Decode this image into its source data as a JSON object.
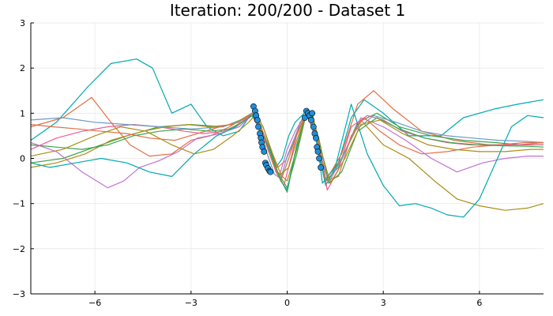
{
  "chart_data": {
    "type": "line",
    "title": "Iteration: 200/200 - Dataset 1",
    "xlim": [
      -8,
      8
    ],
    "ylim": [
      -3,
      3
    ],
    "x_ticks": [
      -6,
      -3,
      0,
      3,
      6
    ],
    "y_ticks": [
      -3,
      -2,
      -1,
      0,
      1,
      2,
      3
    ],
    "x_tick_labels": [
      "−6",
      "−3",
      "0",
      "3",
      "6"
    ],
    "y_tick_labels": [
      "−3",
      "−2",
      "−1",
      "0",
      "1",
      "2",
      "3"
    ],
    "grid": true,
    "legend": "none",
    "series": [
      {
        "color": "#00a9ad",
        "x": [
          -8,
          -7.2,
          -6.2,
          -5.5,
          -4.7,
          -4.2,
          -3.6,
          -3.0,
          -2.5,
          -2.0,
          -1.5,
          -1.1,
          -0.9,
          -0.6,
          -0.35,
          -0.15,
          0.05,
          0.25,
          0.6,
          0.9,
          1.2,
          1.6,
          2.0,
          2.4,
          3.0,
          3.8,
          4.8,
          5.5,
          6.5,
          7.2,
          8
        ],
        "y": [
          0.4,
          0.8,
          1.6,
          2.1,
          2.2,
          2.0,
          1.0,
          1.2,
          0.7,
          0.5,
          0.6,
          1.0,
          0.8,
          0.3,
          -0.2,
          0.0,
          0.5,
          0.8,
          1.05,
          0.4,
          -0.6,
          -0.1,
          0.9,
          1.3,
          1.0,
          0.5,
          0.5,
          0.9,
          1.1,
          1.2,
          1.3
        ]
      },
      {
        "color": "#e26f46",
        "x": [
          -8,
          -7.0,
          -6.1,
          -5.5,
          -4.9,
          -4.3,
          -3.6,
          -3.0,
          -2.4,
          -1.8,
          -1.1,
          -0.9,
          -0.6,
          -0.3,
          -0.05,
          0.2,
          0.6,
          0.9,
          1.2,
          1.7,
          2.2,
          2.7,
          3.3,
          4.2,
          5.2,
          6.3,
          7.2,
          8
        ],
        "y": [
          0.7,
          0.9,
          1.35,
          0.8,
          0.3,
          0.05,
          0.1,
          0.4,
          0.5,
          0.7,
          1.0,
          0.85,
          0.3,
          -0.2,
          -0.05,
          0.35,
          1.0,
          0.5,
          -0.5,
          0.1,
          1.2,
          1.5,
          1.1,
          0.6,
          0.4,
          0.3,
          0.3,
          0.35
        ]
      },
      {
        "color": "#3da44d",
        "x": [
          -8,
          -7.0,
          -6.0,
          -5.0,
          -4.0,
          -3.0,
          -2.0,
          -1.1,
          -0.9,
          -0.6,
          -0.3,
          0.0,
          0.3,
          0.6,
          0.9,
          1.2,
          1.6,
          2.2,
          2.8,
          3.5,
          4.5,
          5.5,
          6.5,
          7.3,
          8
        ],
        "y": [
          -0.1,
          0.0,
          0.25,
          0.5,
          0.7,
          0.75,
          0.7,
          0.95,
          0.75,
          0.2,
          -0.3,
          -0.65,
          0.1,
          1.0,
          0.5,
          -0.5,
          -0.2,
          0.8,
          1.0,
          0.7,
          0.5,
          0.4,
          0.35,
          0.3,
          0.3
        ]
      },
      {
        "color": "#c271d2",
        "x": [
          -8,
          -7.2,
          -6.4,
          -5.6,
          -5.1,
          -4.6,
          -4.0,
          -3.4,
          -2.8,
          -2.1,
          -1.5,
          -1.1,
          -0.8,
          -0.5,
          -0.25,
          0.0,
          0.25,
          0.6,
          0.9,
          1.3,
          1.8,
          2.3,
          3.0,
          3.7,
          4.5,
          5.3,
          6.1,
          6.8,
          7.5,
          8
        ],
        "y": [
          0.35,
          0.15,
          -0.3,
          -0.65,
          -0.5,
          -0.2,
          -0.05,
          0.15,
          0.45,
          0.55,
          0.7,
          0.95,
          0.55,
          0.1,
          -0.4,
          0.2,
          0.6,
          1.0,
          0.45,
          -0.55,
          0.15,
          0.9,
          0.7,
          0.4,
          0.0,
          -0.3,
          -0.1,
          0.0,
          0.05,
          0.05
        ]
      },
      {
        "color": "#ac8d18",
        "x": [
          -8,
          -7.2,
          -6.3,
          -5.5,
          -4.5,
          -3.8,
          -3.1,
          -2.4,
          -1.7,
          -1.1,
          -0.85,
          -0.6,
          -0.3,
          0.0,
          0.3,
          0.6,
          0.9,
          1.2,
          1.7,
          2.3,
          3.0,
          3.8,
          4.6,
          5.3,
          6.0,
          6.8,
          7.5,
          8
        ],
        "y": [
          -0.2,
          -0.1,
          0.1,
          0.4,
          0.6,
          0.7,
          0.75,
          0.7,
          0.75,
          1.0,
          0.75,
          0.2,
          -0.3,
          -0.5,
          0.2,
          1.0,
          0.5,
          -0.45,
          0.0,
          0.85,
          0.3,
          0.0,
          -0.5,
          -0.9,
          -1.05,
          -1.15,
          -1.1,
          -1.0
        ]
      },
      {
        "color": "#00a9ad",
        "x": [
          -8,
          -7.4,
          -6.6,
          -5.8,
          -5.0,
          -4.3,
          -3.6,
          -2.9,
          -2.2,
          -1.6,
          -1.1,
          -0.8,
          -0.5,
          -0.2,
          0.0,
          0.3,
          0.6,
          0.9,
          1.1,
          1.5,
          2.0,
          2.5,
          3.0,
          3.5,
          4.0,
          4.5,
          5.0,
          5.5,
          6.0,
          6.5,
          7.0,
          7.5,
          8
        ],
        "y": [
          -0.1,
          -0.2,
          -0.1,
          0.0,
          -0.1,
          -0.3,
          -0.4,
          0.1,
          0.5,
          0.7,
          0.95,
          0.6,
          0.1,
          -0.5,
          -0.7,
          0.3,
          1.0,
          0.6,
          -0.55,
          -0.2,
          1.2,
          0.1,
          -0.6,
          -1.05,
          -1.0,
          -1.1,
          -1.25,
          -1.3,
          -0.9,
          -0.1,
          0.7,
          0.95,
          0.9
        ]
      },
      {
        "color": "#ed5d92",
        "x": [
          -8,
          -7.2,
          -6.4,
          -5.6,
          -4.8,
          -4.0,
          -3.2,
          -2.6,
          -2.0,
          -1.5,
          -1.1,
          -0.85,
          -0.6,
          -0.35,
          -0.1,
          0.15,
          0.4,
          0.7,
          1.0,
          1.25,
          1.6,
          2.0,
          2.5,
          3.0,
          3.6,
          4.3,
          5.0,
          5.7,
          6.4,
          7.1,
          8
        ],
        "y": [
          0.2,
          0.45,
          0.6,
          0.7,
          0.75,
          0.7,
          0.6,
          0.55,
          0.6,
          0.75,
          1.0,
          0.7,
          0.2,
          -0.3,
          -0.6,
          0.1,
          0.8,
          0.95,
          0.35,
          -0.7,
          -0.25,
          0.7,
          0.95,
          0.85,
          0.6,
          0.45,
          0.35,
          0.3,
          0.3,
          0.3,
          0.3
        ]
      },
      {
        "color": "#6b9ac4",
        "x": [
          -8,
          -7.0,
          -6.0,
          -5.0,
          -4.0,
          -3.0,
          -2.0,
          -1.4,
          -1.1,
          -0.85,
          -0.6,
          -0.4,
          -0.2,
          0.0,
          0.2,
          0.45,
          0.7,
          0.95,
          1.2,
          1.6,
          2.1,
          2.7,
          3.4,
          4.2,
          5.0,
          5.8,
          6.6,
          7.4,
          8
        ],
        "y": [
          0.85,
          0.9,
          0.8,
          0.75,
          0.7,
          0.65,
          0.7,
          0.85,
          1.0,
          0.6,
          0.05,
          -0.35,
          -0.45,
          0.05,
          0.4,
          0.85,
          1.0,
          0.5,
          -0.45,
          -0.15,
          0.6,
          0.95,
          0.8,
          0.6,
          0.5,
          0.45,
          0.4,
          0.38,
          0.35
        ]
      },
      {
        "color": "#e26f46",
        "x": [
          -8,
          -7.3,
          -6.5,
          -5.8,
          -5.0,
          -4.3,
          -3.5,
          -2.8,
          -2.1,
          -1.5,
          -1.1,
          -0.9,
          -0.7,
          -0.45,
          -0.2,
          0.05,
          0.3,
          0.6,
          0.9,
          1.2,
          1.6,
          2.0,
          2.4,
          2.9,
          3.5,
          4.2,
          5.0,
          5.8,
          6.6,
          7.4,
          8
        ],
        "y": [
          0.75,
          0.7,
          0.65,
          0.6,
          0.55,
          0.45,
          0.4,
          0.55,
          0.7,
          0.8,
          1.0,
          0.8,
          0.4,
          -0.1,
          -0.5,
          0.0,
          0.55,
          1.0,
          0.6,
          -0.5,
          -0.4,
          0.5,
          0.9,
          0.6,
          0.3,
          0.1,
          0.15,
          0.25,
          0.3,
          0.35,
          0.35
        ]
      },
      {
        "color": "#3da44d",
        "x": [
          -8,
          -7.2,
          -6.4,
          -5.6,
          -4.8,
          -4.0,
          -3.2,
          -2.4,
          -1.8,
          -1.3,
          -1.0,
          -0.75,
          -0.5,
          -0.25,
          0.0,
          0.25,
          0.5,
          0.75,
          1.0,
          1.3,
          1.7,
          2.2,
          2.8,
          3.5,
          4.3,
          5.1,
          5.9,
          6.7,
          7.5,
          8
        ],
        "y": [
          0.3,
          0.25,
          0.2,
          0.3,
          0.5,
          0.6,
          0.65,
          0.6,
          0.65,
          0.85,
          1.0,
          0.7,
          0.15,
          -0.4,
          -0.75,
          0.1,
          0.8,
          1.0,
          0.4,
          -0.55,
          -0.3,
          0.6,
          0.9,
          0.65,
          0.45,
          0.35,
          0.3,
          0.28,
          0.27,
          0.25
        ]
      },
      {
        "color": "#ac8d18",
        "x": [
          -8,
          -7.0,
          -6.0,
          -5.2,
          -4.4,
          -3.6,
          -2.9,
          -2.3,
          -1.7,
          -1.2,
          -0.95,
          -0.7,
          -0.45,
          -0.2,
          0.05,
          0.3,
          0.55,
          0.8,
          1.05,
          1.35,
          1.8,
          2.3,
          2.9,
          3.6,
          4.4,
          5.2,
          6.0,
          6.8,
          7.6,
          8
        ],
        "y": [
          0.05,
          0.2,
          0.5,
          0.7,
          0.6,
          0.3,
          0.1,
          0.2,
          0.5,
          0.8,
          1.0,
          0.6,
          0.1,
          -0.35,
          -0.2,
          0.4,
          0.9,
          0.95,
          0.2,
          -0.55,
          0.0,
          0.75,
          0.85,
          0.55,
          0.3,
          0.2,
          0.15,
          0.15,
          0.2,
          0.2
        ]
      }
    ],
    "points": {
      "color": "#1f8fd9",
      "x": [
        -1.05,
        -1.0,
        -0.97,
        -0.93,
        -0.9,
        -0.85,
        -0.82,
        -0.8,
        -0.77,
        -0.72,
        -0.68,
        -0.65,
        -0.6,
        -0.55,
        -0.52,
        0.55,
        0.6,
        0.65,
        0.7,
        0.75,
        0.78,
        0.82,
        0.86,
        0.9,
        0.93,
        0.96,
        1.0,
        1.05
      ],
      "y": [
        1.15,
        1.05,
        0.95,
        0.85,
        0.7,
        0.55,
        0.45,
        0.35,
        0.25,
        0.15,
        -0.1,
        -0.15,
        -0.22,
        -0.28,
        -0.3,
        0.9,
        1.05,
        1.0,
        0.95,
        0.85,
        1.0,
        0.7,
        0.55,
        0.45,
        0.25,
        0.15,
        0.0,
        -0.2
      ]
    }
  }
}
